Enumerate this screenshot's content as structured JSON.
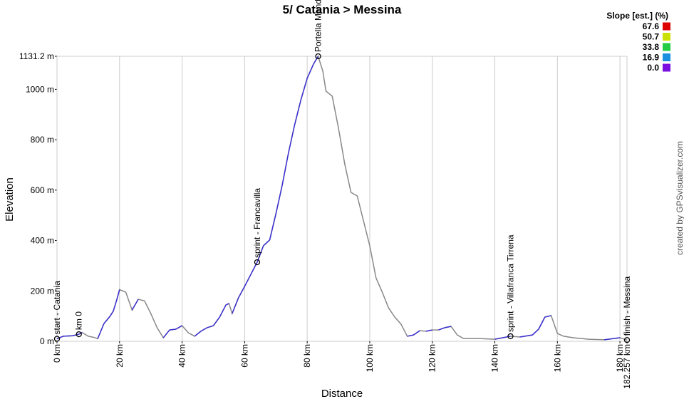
{
  "chart_data": {
    "type": "line",
    "title": "5/ Catania > Messina",
    "x_label": "Distance",
    "y_label": "Elevation",
    "credit": "created by GPSvisualizer.com",
    "xlim": [
      0,
      182.257
    ],
    "ylim": [
      0,
      1131.2
    ],
    "xticks": [
      {
        "value": 0,
        "label": "0 km"
      },
      {
        "value": 20,
        "label": "20 km"
      },
      {
        "value": 40,
        "label": "40 km"
      },
      {
        "value": 60,
        "label": "60 km"
      },
      {
        "value": 80,
        "label": "80 km"
      },
      {
        "value": 100,
        "label": "100 km"
      },
      {
        "value": 120,
        "label": "120 km"
      },
      {
        "value": 140,
        "label": "140 km"
      },
      {
        "value": 160,
        "label": "160 km"
      },
      {
        "value": 180,
        "label": "180 km"
      },
      {
        "value": 182.257,
        "label": "182.257 km"
      }
    ],
    "yticks": [
      {
        "value": 0,
        "label": "0 m"
      },
      {
        "value": 200,
        "label": "200 m"
      },
      {
        "value": 400,
        "label": "400 m"
      },
      {
        "value": 600,
        "label": "600 m"
      },
      {
        "value": 800,
        "label": "800 m"
      },
      {
        "value": 1000,
        "label": "1000 m"
      },
      {
        "value": 1131.2,
        "label": "1131.2 m"
      }
    ],
    "grid": true,
    "series": [
      {
        "color": "#888888",
        "ascent_color": "#3a2fd0",
        "x": [
          0,
          2,
          5,
          7,
          8,
          10,
          12,
          13,
          14,
          15,
          17,
          18,
          19,
          20,
          22,
          24,
          26,
          28,
          30,
          32,
          34,
          36,
          38,
          40,
          42,
          44,
          46,
          48,
          50,
          52,
          54,
          55,
          56,
          58,
          60,
          62,
          64,
          66,
          68,
          70,
          72,
          74,
          76,
          78,
          80,
          82,
          83.5,
          85,
          86,
          88,
          90,
          92,
          94,
          96,
          98,
          100,
          102,
          104,
          106,
          108,
          110,
          112,
          114,
          116,
          118,
          120,
          122,
          124,
          126,
          128,
          130,
          135,
          140,
          145,
          148,
          152,
          154,
          156,
          158,
          160,
          162,
          165,
          170,
          175,
          180,
          182.257
        ],
        "values": [
          10,
          20,
          22,
          28,
          35,
          20,
          15,
          10,
          40,
          70,
          100,
          120,
          160,
          205,
          195,
          124,
          167,
          160,
          110,
          54,
          14,
          45,
          48,
          62,
          34,
          20,
          40,
          54,
          62,
          96,
          144,
          150,
          110,
          172,
          218,
          266,
          314,
          379,
          402,
          506,
          619,
          747,
          860,
          959,
          1044,
          1100,
          1131.2,
          1072,
          993,
          973,
          846,
          704,
          591,
          577,
          478,
          379,
          252,
          195,
          133,
          96,
          68,
          20,
          25,
          42,
          40,
          45,
          45,
          54,
          59,
          25,
          11,
          11,
          8,
          20,
          17,
          25,
          48,
          96,
          102,
          31,
          20,
          14,
          8,
          6,
          14,
          5
        ]
      }
    ],
    "waypoints": [
      {
        "name": "start - Catania",
        "x": 0,
        "y": 10
      },
      {
        "name": "km 0",
        "x": 7,
        "y": 28
      },
      {
        "name": "sprint - Francavilla",
        "x": 64,
        "y": 314
      },
      {
        "name": "Portella Mandrazzi",
        "x": 83.5,
        "y": 1131.2
      },
      {
        "name": "sprint - Villafranca Tirrena",
        "x": 145,
        "y": 20
      },
      {
        "name": "finish - Messina",
        "x": 182.257,
        "y": 5
      }
    ],
    "slope_legend": {
      "title": "Slope [est.] (%)",
      "entries": [
        {
          "value": 67.6,
          "color": "#dd0000"
        },
        {
          "value": 50.7,
          "color": "#cce000"
        },
        {
          "value": 33.8,
          "color": "#22cc44"
        },
        {
          "value": 16.9,
          "color": "#1a8fe0"
        },
        {
          "value": 0,
          "label": "0.0",
          "color": "#7a10e0"
        }
      ]
    }
  }
}
